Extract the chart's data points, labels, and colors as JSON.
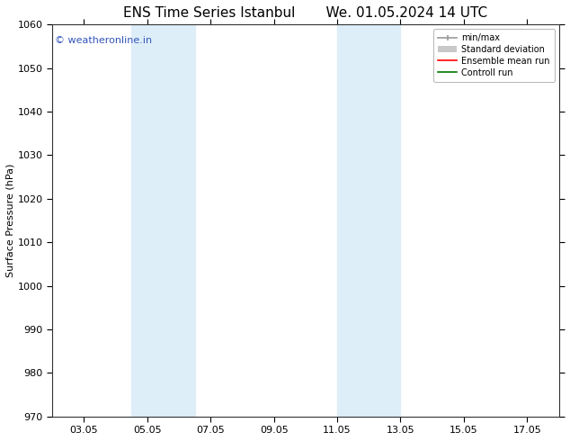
{
  "title_left": "ENS Time Series Istanbul",
  "title_right": "We. 01.05.2024 14 UTC",
  "ylabel": "Surface Pressure (hPa)",
  "ylim": [
    970,
    1060
  ],
  "yticks": [
    970,
    980,
    990,
    1000,
    1010,
    1020,
    1030,
    1040,
    1050,
    1060
  ],
  "xtick_labels": [
    "03.05",
    "05.05",
    "07.05",
    "09.05",
    "11.05",
    "13.05",
    "15.05",
    "17.05"
  ],
  "xtick_positions": [
    3,
    5,
    7,
    9,
    11,
    13,
    15,
    17
  ],
  "xlim": [
    2,
    18
  ],
  "watermark": "© weatheronline.in",
  "watermark_color": "#3355bb",
  "bg_color": "#ffffff",
  "plot_bg_color": "#ffffff",
  "shaded_regions": [
    {
      "xmin": 4.5,
      "xmax": 6.5,
      "color": "#deeef8"
    },
    {
      "xmin": 11.0,
      "xmax": 13.0,
      "color": "#deeef8"
    }
  ],
  "legend_items": [
    {
      "label": "min/max",
      "color": "#999999",
      "lw": 1.2,
      "ls": "-",
      "type": "minmax"
    },
    {
      "label": "Standard deviation",
      "color": "#c8c8c8",
      "lw": 5,
      "ls": "-",
      "type": "patch"
    },
    {
      "label": "Ensemble mean run",
      "color": "#ff0000",
      "lw": 1.2,
      "ls": "-",
      "type": "line"
    },
    {
      "label": "Controll run",
      "color": "#007700",
      "lw": 1.2,
      "ls": "-",
      "type": "line"
    }
  ],
  "grid_color": "#cccccc",
  "title_fontsize": 11,
  "axis_label_fontsize": 8,
  "tick_fontsize": 8
}
